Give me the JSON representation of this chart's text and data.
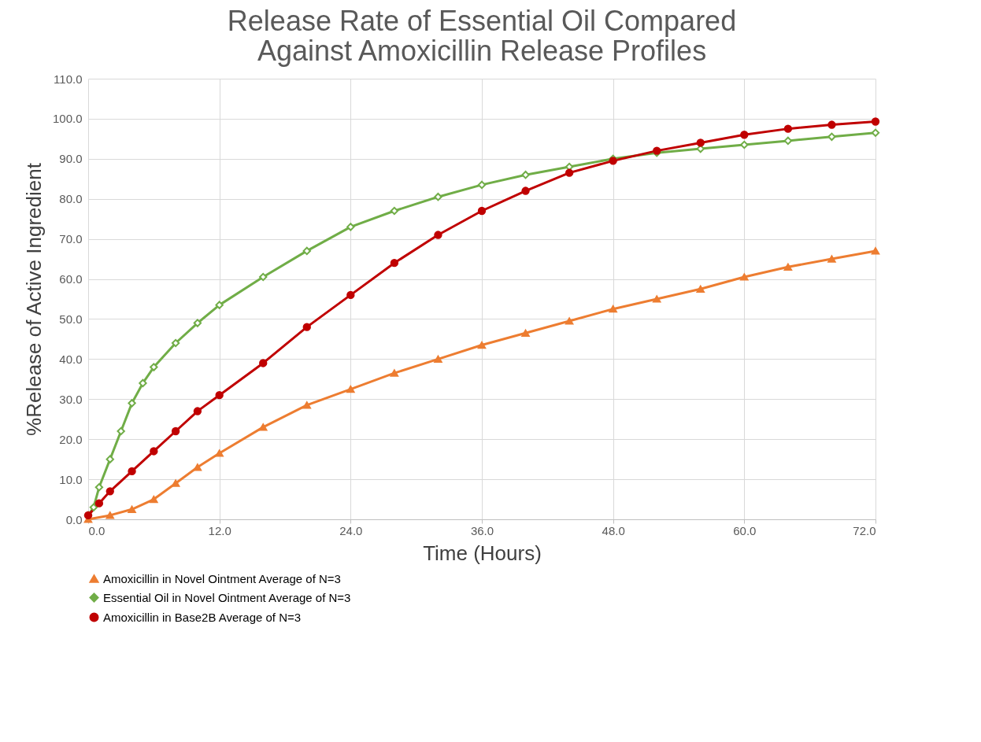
{
  "chart_data": {
    "type": "line",
    "title": "Release Rate of Essential Oil Compared Against Amoxicillin Release Profiles",
    "xlabel": "Time (Hours)",
    "ylabel": "%Release of Active Ingredient",
    "xlim": [
      0,
      72
    ],
    "xticks": [
      {
        "value": 0,
        "label": "0.0"
      },
      {
        "value": 12,
        "label": "12.0"
      },
      {
        "value": 24,
        "label": "24.0"
      },
      {
        "value": 36,
        "label": "36.0"
      },
      {
        "value": 48,
        "label": "48.0"
      },
      {
        "value": 60,
        "label": "60.0"
      },
      {
        "value": 72,
        "label": "72.0"
      }
    ],
    "ylim": [
      0,
      110
    ],
    "yticks": [
      {
        "value": 0,
        "label": "0.0"
      },
      {
        "value": 10,
        "label": "10.0"
      },
      {
        "value": 20,
        "label": "20.0"
      },
      {
        "value": 30,
        "label": "30.0"
      },
      {
        "value": 40,
        "label": "40.0"
      },
      {
        "value": 50,
        "label": "50.0"
      },
      {
        "value": 60,
        "label": "60.0"
      },
      {
        "value": 70,
        "label": "70.0"
      },
      {
        "value": 80,
        "label": "80.0"
      },
      {
        "value": 90,
        "label": "90.0"
      },
      {
        "value": 100,
        "label": "100.0"
      },
      {
        "value": 110,
        "label": "110.0"
      }
    ],
    "grid": true,
    "legend": "bottom",
    "line_style": "solid",
    "series": [
      {
        "name": "Amoxicillin in Novel Ointment Average of N=3",
        "color": "#ed7d31",
        "marker": "triangle",
        "x": [
          0,
          2,
          4,
          6,
          8,
          10,
          12,
          16,
          20,
          24,
          28,
          32,
          36,
          40,
          44,
          48,
          52,
          56,
          60,
          64,
          68,
          72
        ],
        "values": [
          0,
          1,
          2.5,
          5,
          9,
          13,
          16.5,
          23,
          28.5,
          32.5,
          36.5,
          40,
          43.5,
          46.5,
          49.5,
          52.5,
          55,
          57.5,
          60.5,
          63,
          65,
          67
        ]
      },
      {
        "name": "Essential Oil in Novel Ointment Average of N=3",
        "color": "#70ad47",
        "marker": "diamond",
        "x": [
          0,
          0.5,
          1,
          2,
          3,
          4,
          5,
          6,
          8,
          10,
          12,
          16,
          20,
          24,
          28,
          32,
          36,
          40,
          44,
          48,
          52,
          56,
          60,
          64,
          68,
          72
        ],
        "values": [
          1,
          3,
          8,
          15,
          22,
          29,
          34,
          38,
          44,
          49,
          53.5,
          60.5,
          67,
          73,
          77,
          80.5,
          83.5,
          86,
          88,
          90,
          91.5,
          92.5,
          93.5,
          94.5,
          95.5,
          96.5
        ]
      },
      {
        "name": "Amoxicillin in Base2B Average of N=3",
        "color": "#c00000",
        "marker": "circle",
        "x": [
          0,
          1,
          2,
          4,
          6,
          8,
          10,
          12,
          16,
          20,
          24,
          28,
          32,
          36,
          40,
          44,
          48,
          52,
          56,
          60,
          64,
          68,
          72
        ],
        "values": [
          1,
          4,
          7,
          12,
          17,
          22,
          27,
          31,
          39,
          48,
          56,
          64,
          71,
          77,
          82,
          86.5,
          89.5,
          92,
          94,
          96,
          97.5,
          98.5,
          99.3
        ]
      }
    ]
  }
}
